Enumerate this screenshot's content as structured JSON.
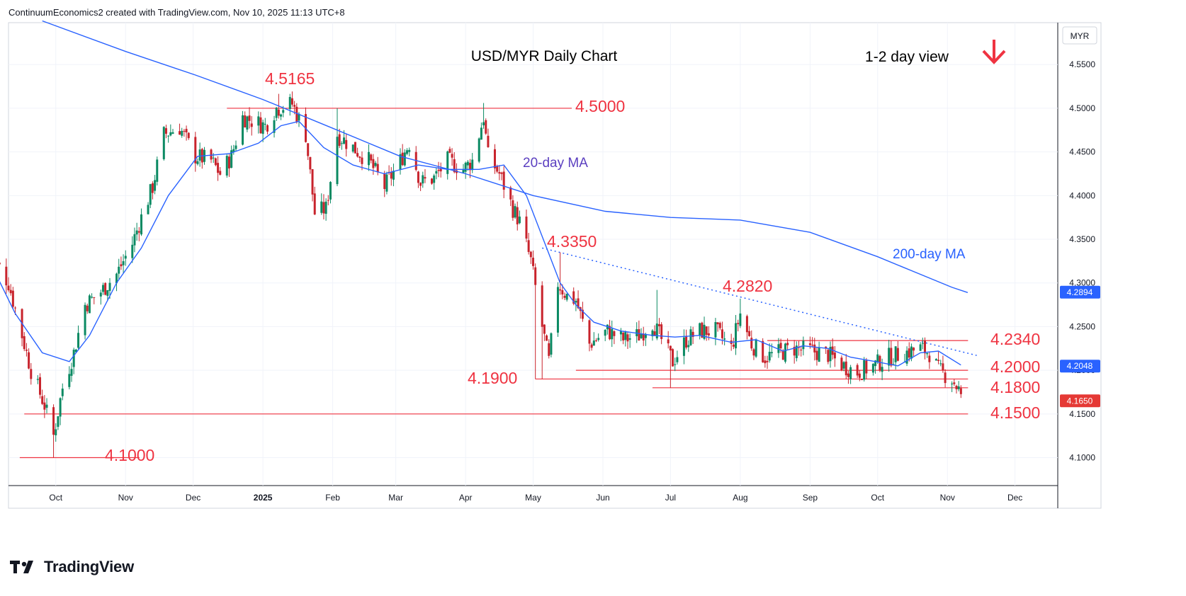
{
  "header": {
    "attribution": "ContinuumEconomics2 created with TradingView.com, Nov 10, 2025 11:13 UTC+8"
  },
  "branding": {
    "logo_text": "TradingView"
  },
  "colors": {
    "up": "#0b8a63",
    "down": "#c8232c",
    "annotation": "#ef3341",
    "ma20": "#2962ff",
    "ma200": "#2962ff",
    "trendline": "#2962ff"
  },
  "chart_data": {
    "type": "candlestick",
    "title": "USD/MYR Daily Chart",
    "view_label": "1-2 day view",
    "view_direction": "down-arrow-icon",
    "currency_label": "MYR",
    "yticks": [
      "4.1000",
      "4.1500",
      "4.2000",
      "4.2500",
      "4.3000",
      "4.3500",
      "4.4000",
      "4.4500",
      "4.5000",
      "4.5500"
    ],
    "ytick_values": [
      4.1,
      4.15,
      4.2,
      4.25,
      4.3,
      4.35,
      4.4,
      4.45,
      4.5,
      4.55
    ],
    "ylim": [
      4.068,
      4.598
    ],
    "xlabels": [
      {
        "label": "Oct",
        "date": "2024-10-01"
      },
      {
        "label": "Nov",
        "date": "2024-11-01"
      },
      {
        "label": "Dec",
        "date": "2024-12-01"
      },
      {
        "label": "2025",
        "date": "2025-01-01",
        "bold": true
      },
      {
        "label": "Feb",
        "date": "2025-02-01"
      },
      {
        "label": "Mar",
        "date": "2025-03-01"
      },
      {
        "label": "Apr",
        "date": "2025-04-01"
      },
      {
        "label": "May",
        "date": "2025-05-01"
      },
      {
        "label": "Jun",
        "date": "2025-06-01"
      },
      {
        "label": "Jul",
        "date": "2025-07-01"
      },
      {
        "label": "Aug",
        "date": "2025-08-01"
      },
      {
        "label": "Sep",
        "date": "2025-09-01"
      },
      {
        "label": "Oct",
        "date": "2025-10-01"
      },
      {
        "label": "Nov",
        "date": "2025-11-01"
      },
      {
        "label": "Dec",
        "date": "2025-12-01"
      }
    ],
    "price_tags": [
      {
        "label": "4.2894",
        "value": 4.2894,
        "color": "#2962ff"
      },
      {
        "label": "4.2048",
        "value": 4.2048,
        "color": "#2962ff"
      },
      {
        "label": "4.1650",
        "value": 4.165,
        "color": "#e53935"
      }
    ],
    "levels": [
      {
        "label": "4.5165",
        "value": 4.5165,
        "line": false
      },
      {
        "label": "4.5000",
        "value": 4.5,
        "line": true,
        "from": "2024-12-16",
        "to": "2025-05-15"
      },
      {
        "label": "4.3350",
        "value": 4.335,
        "line": false
      },
      {
        "label": "4.2820",
        "value": 4.282,
        "line": false
      },
      {
        "label": "4.2340",
        "value": 4.234,
        "line": true,
        "from": "2025-08-13",
        "to": "2025-11-07"
      },
      {
        "label": "4.2000",
        "value": 4.2,
        "line": true,
        "from": "2025-05-20",
        "to": "2025-11-07"
      },
      {
        "label": "4.1900",
        "value": 4.19,
        "line": true,
        "from": "2025-05-02",
        "to": "2025-11-07"
      },
      {
        "label": "4.1800",
        "value": 4.18,
        "line": true,
        "from": "2025-06-23",
        "to": "2025-11-07"
      },
      {
        "label": "4.1500",
        "value": 4.15,
        "line": true,
        "from": "2024-09-17",
        "to": "2025-11-07"
      },
      {
        "label": "4.1000",
        "value": 4.1,
        "line": true,
        "from": "2024-09-15",
        "to": "2024-11-04"
      }
    ],
    "trendline": {
      "from": {
        "date": "2025-05-05",
        "value": 4.34
      },
      "to": {
        "date": "2025-11-14",
        "value": 4.217
      }
    },
    "ma_labels": [
      {
        "label": "20-day MA",
        "series": "ma20"
      },
      {
        "label": "200-day MA",
        "series": "ma200"
      }
    ],
    "candle_keypoints": [
      [
        "2024-09-02",
        4.335
      ],
      [
        "2024-09-10",
        4.3
      ],
      [
        "2024-09-20",
        4.2
      ],
      [
        "2024-09-26",
        4.16
      ],
      [
        "2024-09-30",
        4.125
      ],
      [
        "2024-10-04",
        4.18
      ],
      [
        "2024-10-09",
        4.22
      ],
      [
        "2024-10-14",
        4.275
      ],
      [
        "2024-10-21",
        4.29
      ],
      [
        "2024-10-28",
        4.31
      ],
      [
        "2024-11-04",
        4.345
      ],
      [
        "2024-11-08",
        4.375
      ],
      [
        "2024-11-13",
        4.41
      ],
      [
        "2024-11-18",
        4.47
      ],
      [
        "2024-11-25",
        4.478
      ],
      [
        "2024-12-02",
        4.445
      ],
      [
        "2024-12-09",
        4.44
      ],
      [
        "2024-12-13",
        4.425
      ],
      [
        "2024-12-18",
        4.445
      ],
      [
        "2024-12-23",
        4.49
      ],
      [
        "2025-01-02",
        4.48
      ],
      [
        "2025-01-07",
        4.5
      ],
      [
        "2025-01-14",
        4.505
      ],
      [
        "2025-01-20",
        4.47
      ],
      [
        "2025-01-24",
        4.38
      ],
      [
        "2025-01-29",
        4.385
      ],
      [
        "2025-02-03",
        4.47
      ],
      [
        "2025-02-10",
        4.455
      ],
      [
        "2025-02-17",
        4.44
      ],
      [
        "2025-02-24",
        4.41
      ],
      [
        "2025-03-03",
        4.44
      ],
      [
        "2025-03-07",
        4.46
      ],
      [
        "2025-03-12",
        4.415
      ],
      [
        "2025-03-18",
        4.42
      ],
      [
        "2025-03-24",
        4.44
      ],
      [
        "2025-03-31",
        4.43
      ],
      [
        "2025-04-04",
        4.44
      ],
      [
        "2025-04-09",
        4.49
      ],
      [
        "2025-04-11",
        4.445
      ],
      [
        "2025-04-16",
        4.425
      ],
      [
        "2025-04-22",
        4.385
      ],
      [
        "2025-04-25",
        4.37
      ],
      [
        "2025-04-30",
        4.325
      ],
      [
        "2025-05-05",
        4.25
      ],
      [
        "2025-05-08",
        4.21
      ],
      [
        "2025-05-12",
        4.3
      ],
      [
        "2025-05-16",
        4.285
      ],
      [
        "2025-05-20",
        4.28
      ],
      [
        "2025-05-26",
        4.23
      ],
      [
        "2025-06-03",
        4.245
      ],
      [
        "2025-06-10",
        4.235
      ],
      [
        "2025-06-17",
        4.24
      ],
      [
        "2025-06-23",
        4.255
      ],
      [
        "2025-06-27",
        4.235
      ],
      [
        "2025-07-02",
        4.21
      ],
      [
        "2025-07-08",
        4.235
      ],
      [
        "2025-07-14",
        4.245
      ],
      [
        "2025-07-21",
        4.245
      ],
      [
        "2025-07-28",
        4.225
      ],
      [
        "2025-08-01",
        4.265
      ],
      [
        "2025-08-06",
        4.23
      ],
      [
        "2025-08-12",
        4.215
      ],
      [
        "2025-08-18",
        4.22
      ],
      [
        "2025-08-25",
        4.225
      ],
      [
        "2025-09-02",
        4.222
      ],
      [
        "2025-09-09",
        4.218
      ],
      [
        "2025-09-16",
        4.205
      ],
      [
        "2025-09-22",
        4.198
      ],
      [
        "2025-09-29",
        4.205
      ],
      [
        "2025-10-06",
        4.215
      ],
      [
        "2025-10-13",
        4.22
      ],
      [
        "2025-10-20",
        4.225
      ],
      [
        "2025-10-24",
        4.22
      ],
      [
        "2025-10-28",
        4.2
      ],
      [
        "2025-11-03",
        4.19
      ],
      [
        "2025-11-06",
        4.178
      ],
      [
        "2025-11-07",
        4.166
      ]
    ],
    "ma20_keypoints": [
      [
        "2024-08-26",
        4.36
      ],
      [
        "2024-09-13",
        4.265
      ],
      [
        "2024-09-25",
        4.22
      ],
      [
        "2024-10-07",
        4.21
      ],
      [
        "2024-10-16",
        4.24
      ],
      [
        "2024-10-28",
        4.3
      ],
      [
        "2024-11-08",
        4.34
      ],
      [
        "2024-11-20",
        4.4
      ],
      [
        "2024-12-03",
        4.445
      ],
      [
        "2024-12-17",
        4.448
      ],
      [
        "2024-12-30",
        4.46
      ],
      [
        "2025-01-09",
        4.48
      ],
      [
        "2025-01-17",
        4.485
      ],
      [
        "2025-01-28",
        4.455
      ],
      [
        "2025-02-10",
        4.435
      ],
      [
        "2025-02-24",
        4.425
      ],
      [
        "2025-03-11",
        4.435
      ],
      [
        "2025-03-24",
        4.43
      ],
      [
        "2025-04-07",
        4.43
      ],
      [
        "2025-04-18",
        4.435
      ],
      [
        "2025-04-28",
        4.4
      ],
      [
        "2025-05-07",
        4.34
      ],
      [
        "2025-05-13",
        4.3
      ],
      [
        "2025-05-20",
        4.275
      ],
      [
        "2025-05-28",
        4.255
      ],
      [
        "2025-06-09",
        4.245
      ],
      [
        "2025-06-23",
        4.24
      ],
      [
        "2025-07-03",
        4.238
      ],
      [
        "2025-07-14",
        4.24
      ],
      [
        "2025-07-28",
        4.232
      ],
      [
        "2025-08-08",
        4.235
      ],
      [
        "2025-08-20",
        4.222
      ],
      [
        "2025-08-29",
        4.228
      ],
      [
        "2025-09-09",
        4.225
      ],
      [
        "2025-09-19",
        4.215
      ],
      [
        "2025-09-30",
        4.21
      ],
      [
        "2025-10-10",
        4.205
      ],
      [
        "2025-10-20",
        4.22
      ],
      [
        "2025-10-28",
        4.222
      ],
      [
        "2025-11-07",
        4.206
      ]
    ],
    "ma200_keypoints": [
      [
        "2024-09-25",
        4.6
      ],
      [
        "2024-11-01",
        4.565
      ],
      [
        "2024-12-02",
        4.538
      ],
      [
        "2025-01-01",
        4.51
      ],
      [
        "2025-02-03",
        4.475
      ],
      [
        "2025-03-03",
        4.445
      ],
      [
        "2025-04-01",
        4.425
      ],
      [
        "2025-05-01",
        4.4
      ],
      [
        "2025-06-02",
        4.382
      ],
      [
        "2025-07-01",
        4.375
      ],
      [
        "2025-08-01",
        4.372
      ],
      [
        "2025-09-01",
        4.358
      ],
      [
        "2025-10-01",
        4.33
      ],
      [
        "2025-11-03",
        4.295
      ],
      [
        "2025-11-10",
        4.289
      ]
    ]
  }
}
